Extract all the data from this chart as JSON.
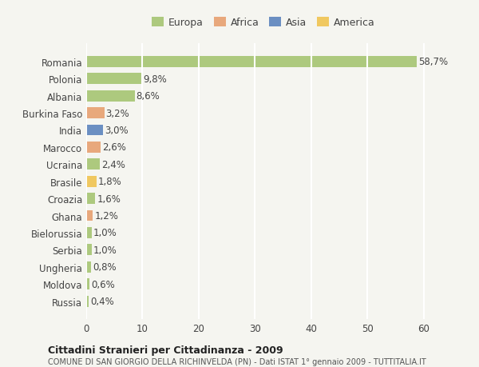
{
  "countries": [
    "Romania",
    "Polonia",
    "Albania",
    "Burkina Faso",
    "India",
    "Marocco",
    "Ucraina",
    "Brasile",
    "Croazia",
    "Ghana",
    "Bielorussia",
    "Serbia",
    "Ungheria",
    "Moldova",
    "Russia"
  ],
  "values": [
    58.7,
    9.8,
    8.6,
    3.2,
    3.0,
    2.6,
    2.4,
    1.8,
    1.6,
    1.2,
    1.0,
    1.0,
    0.8,
    0.6,
    0.4
  ],
  "labels": [
    "58,7%",
    "9,8%",
    "8,6%",
    "3,2%",
    "3,0%",
    "2,6%",
    "2,4%",
    "1,8%",
    "1,6%",
    "1,2%",
    "1,0%",
    "1,0%",
    "0,8%",
    "0,6%",
    "0,4%"
  ],
  "continents": [
    "Europa",
    "Europa",
    "Europa",
    "Africa",
    "Asia",
    "Africa",
    "Europa",
    "America",
    "Europa",
    "Africa",
    "Europa",
    "Europa",
    "Europa",
    "Europa",
    "Europa"
  ],
  "colors": {
    "Europa": "#adc97e",
    "Africa": "#e8a87c",
    "Asia": "#6b8fc2",
    "America": "#f0c860"
  },
  "legend_colors": {
    "Europa": "#adc97e",
    "Africa": "#e8a87c",
    "Asia": "#6b8fc2",
    "America": "#f0c860"
  },
  "xlim": [
    0,
    63
  ],
  "xticks": [
    0,
    10,
    20,
    30,
    40,
    50,
    60
  ],
  "title": "Cittadini Stranieri per Cittadinanza - 2009",
  "subtitle": "COMUNE DI SAN GIORGIO DELLA RICHINVELDA (PN) - Dati ISTAT 1° gennaio 2009 - TUTTITALIA.IT",
  "background_color": "#f5f5f0",
  "bar_height": 0.65,
  "grid_color": "#ffffff",
  "label_fontsize": 8.5,
  "tick_fontsize": 8.5
}
